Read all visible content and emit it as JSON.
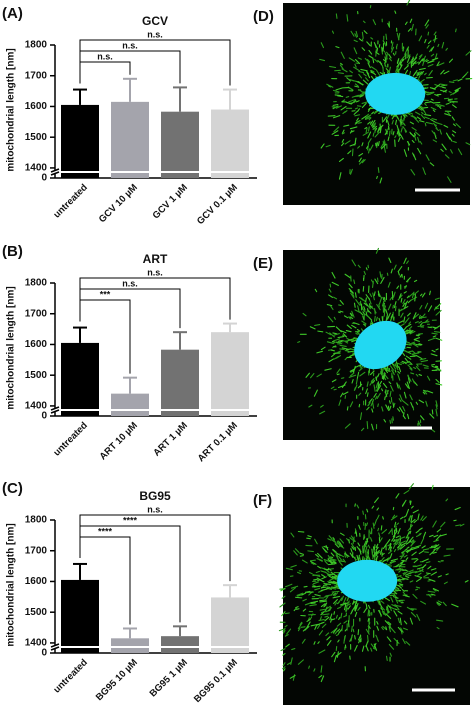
{
  "chart_data": [
    {
      "type": "bar",
      "panel_label": "(A)",
      "title": "GCV",
      "y_label": "mitochondrial length [nm]",
      "categories": [
        "untreated",
        "GCV 10 µM",
        "GCV 1 µM",
        "GCV 0.1 µM"
      ],
      "values": [
        1605,
        1615,
        1583,
        1590
      ],
      "errors": [
        50,
        75,
        79,
        65
      ],
      "colors": [
        "#000000",
        "#a4a4ac",
        "#727272",
        "#d4d4d4"
      ],
      "ylim": [
        0,
        1800
      ],
      "y_break": [
        50,
        1390
      ],
      "yticks": [
        0,
        1400,
        1500,
        1600,
        1700,
        1800
      ],
      "comparisons": [
        {
          "target": 1,
          "label": "n.s."
        },
        {
          "target": 2,
          "label": "n.s."
        },
        {
          "target": 3,
          "label": "n.s."
        }
      ]
    },
    {
      "type": "bar",
      "panel_label": "(B)",
      "title": "ART",
      "y_label": "mitochondrial length [nm]",
      "categories": [
        "untreated",
        "ART 10 µM",
        "ART 1 µM",
        "ART 0.1 µM"
      ],
      "values": [
        1605,
        1440,
        1583,
        1640
      ],
      "errors": [
        50,
        52,
        57,
        28
      ],
      "colors": [
        "#000000",
        "#a4a4ac",
        "#727272",
        "#d4d4d4"
      ],
      "ylim": [
        0,
        1800
      ],
      "y_break": [
        50,
        1390
      ],
      "yticks": [
        0,
        1400,
        1500,
        1600,
        1700,
        1800
      ],
      "comparisons": [
        {
          "target": 1,
          "label": "***"
        },
        {
          "target": 2,
          "label": "n.s."
        },
        {
          "target": 3,
          "label": "n.s."
        }
      ]
    },
    {
      "type": "bar",
      "panel_label": "(C)",
      "title": "BG95",
      "y_label": "mitochondrial length [nm]",
      "categories": [
        "untreated",
        "BG95 10 µM",
        "BG95 1 µM",
        "BG95 0.1 µM"
      ],
      "values": [
        1605,
        1415,
        1422,
        1548
      ],
      "errors": [
        52,
        32,
        32,
        40
      ],
      "colors": [
        "#000000",
        "#a4a4ac",
        "#727272",
        "#d4d4d4"
      ],
      "ylim": [
        0,
        1800
      ],
      "y_break": [
        50,
        1390
      ],
      "yticks": [
        0,
        1400,
        1500,
        1600,
        1700,
        1800
      ],
      "comparisons": [
        {
          "target": 1,
          "label": "****"
        },
        {
          "target": 2,
          "label": "****"
        },
        {
          "target": 3,
          "label": "n.s."
        }
      ]
    }
  ],
  "images": [
    {
      "label": "(D)"
    },
    {
      "label": "(E)"
    },
    {
      "label": "(F)"
    }
  ]
}
